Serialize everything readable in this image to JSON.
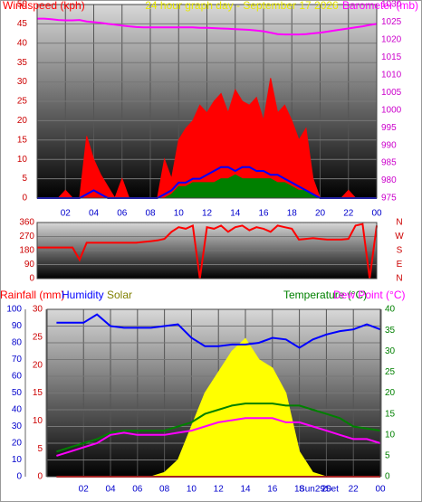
{
  "chart_data": [
    {
      "type": "line",
      "title": "24 hour graph day - September 17 2026",
      "x": [
        0,
        0.5,
        1,
        1.5,
        2,
        2.5,
        3,
        3.5,
        4,
        4.5,
        5,
        5.5,
        6,
        6.5,
        7,
        7.5,
        8,
        8.5,
        9,
        9.5,
        10,
        10.5,
        11,
        11.5,
        12,
        12.5,
        13,
        13.5,
        14,
        14.5,
        15,
        15.5,
        16,
        16.5,
        17,
        17.5,
        18,
        18.5,
        19,
        19.5,
        20,
        20.5,
        21,
        21.5,
        22,
        22.5,
        23,
        23.5,
        24
      ],
      "xlim": [
        0,
        24
      ],
      "xticks": [
        {
          "value": 2,
          "label": "02"
        },
        {
          "value": 4,
          "label": "04"
        },
        {
          "value": 6,
          "label": "06"
        },
        {
          "value": 8,
          "label": "08"
        },
        10,
        12,
        14,
        16,
        18,
        20,
        22,
        {
          "value": 24,
          "label": "00"
        }
      ],
      "ylim": [
        0,
        50
      ],
      "yticks": [
        0,
        5,
        10,
        15,
        20,
        25,
        30,
        35,
        40,
        45,
        50
      ],
      "y2lim": [
        975,
        1030
      ],
      "y2ticks": [
        975,
        980,
        985,
        990,
        995,
        1000,
        1005,
        1010,
        1015,
        1020,
        1025,
        1030
      ],
      "series": [
        {
          "name": "Windspeed (kph)",
          "color": "#ff0000",
          "style": "area",
          "axis": "y",
          "values": [
            0,
            0,
            0,
            0,
            2,
            0,
            0,
            16,
            10,
            6,
            3,
            0,
            5,
            0,
            0,
            0,
            0,
            0,
            10,
            5,
            15,
            18,
            20,
            24,
            22,
            25,
            27,
            22,
            28,
            25,
            24,
            26,
            20,
            31,
            22,
            24,
            20,
            15,
            18,
            5,
            0,
            0,
            0,
            0,
            2,
            0,
            0,
            0,
            0
          ]
        },
        {
          "color": "#0000ff",
          "style": "line",
          "axis": "y",
          "values": [
            0,
            0,
            0,
            0,
            0,
            0,
            0,
            1,
            2,
            1,
            0,
            0,
            0,
            0,
            0,
            0,
            0,
            0,
            1,
            2,
            4,
            4,
            5,
            5,
            6,
            7,
            8,
            8,
            7,
            8,
            8,
            7,
            7,
            6,
            6,
            5,
            4,
            3,
            2,
            1,
            0,
            0,
            0,
            0,
            0,
            0,
            0,
            0,
            0
          ]
        },
        {
          "color": "#008000",
          "style": "area",
          "axis": "y",
          "values": [
            0,
            0,
            0,
            0,
            0,
            0,
            0,
            0,
            0,
            0,
            0,
            0,
            0,
            0,
            0,
            0,
            0,
            0,
            0,
            1,
            3,
            3,
            4,
            4,
            4,
            4,
            5,
            5,
            6,
            5,
            5,
            5,
            5,
            5,
            4,
            4,
            3,
            2,
            2,
            1,
            0,
            0,
            0,
            0,
            0,
            0,
            0,
            0,
            0
          ]
        },
        {
          "name": "Barometer (mb)",
          "color": "#ff00ff",
          "style": "line",
          "axis": "y2",
          "values": [
            1026,
            1026,
            1025.8,
            1025.6,
            1025.5,
            1025.5,
            1025.6,
            1025.2,
            1025,
            1024.8,
            1024.5,
            1024.3,
            1024,
            1023.8,
            1023.6,
            1023.5,
            1023.5,
            1023.5,
            1023.5,
            1023.5,
            1023.5,
            1023.5,
            1023.5,
            1023.4,
            1023.4,
            1023.3,
            1023.2,
            1023.1,
            1023,
            1022.9,
            1022.8,
            1022.6,
            1022.4,
            1022,
            1021.6,
            1021.5,
            1021.5,
            1021.5,
            1021.6,
            1021.8,
            1022,
            1022.3,
            1022.6,
            1022.9,
            1023.2,
            1023.5,
            1023.8,
            1024.2,
            1024.5
          ]
        }
      ]
    },
    {
      "type": "line",
      "x": [
        0,
        0.5,
        1,
        1.5,
        2,
        2.5,
        3,
        3.5,
        4,
        4.5,
        5,
        5.5,
        6,
        6.5,
        7,
        7.5,
        8,
        8.5,
        9,
        9.5,
        10,
        10.5,
        11,
        11.5,
        12,
        12.5,
        13,
        13.5,
        14,
        14.5,
        15,
        15.5,
        16,
        16.5,
        17,
        17.5,
        18,
        18.5,
        19,
        19.5,
        20,
        20.5,
        21,
        21.5,
        22,
        22.5,
        23,
        23.5,
        24
      ],
      "xlim": [
        0,
        24
      ],
      "ylim": [
        0,
        360
      ],
      "yticks": [
        0,
        90,
        180,
        270,
        360
      ],
      "y2lim": [
        0,
        360
      ],
      "y2ticks": [
        {
          "value": 0,
          "label": "N"
        },
        {
          "value": 90,
          "label": "E"
        },
        {
          "value": 180,
          "label": "S"
        },
        {
          "value": 270,
          "label": "W"
        },
        {
          "value": 360,
          "label": "N"
        }
      ],
      "series": [
        {
          "color": "#ff0000",
          "style": "line",
          "axis": "y",
          "values": [
            200,
            200,
            200,
            200,
            200,
            200,
            120,
            230,
            230,
            230,
            230,
            230,
            230,
            230,
            230,
            235,
            240,
            245,
            255,
            300,
            330,
            320,
            340,
            0,
            330,
            320,
            340,
            300,
            330,
            340,
            310,
            330,
            320,
            300,
            340,
            330,
            320,
            250,
            255,
            260,
            255,
            250,
            250,
            250,
            255,
            340,
            350,
            0,
            340
          ]
        }
      ]
    },
    {
      "type": "line",
      "annotation": "Sun29Set",
      "x": [
        0,
        1,
        2,
        3,
        4,
        5,
        6,
        7,
        8,
        9,
        10,
        11,
        12,
        13,
        14,
        15,
        16,
        17,
        18,
        19,
        20,
        21,
        22,
        23,
        24
      ],
      "xlim": [
        -0.7,
        24
      ],
      "xticks": [
        {
          "value": 2,
          "label": "02"
        },
        {
          "value": 4,
          "label": "04"
        },
        {
          "value": 6,
          "label": "06"
        },
        {
          "value": 8,
          "label": "08"
        },
        10,
        12,
        14,
        16,
        18,
        20,
        22,
        {
          "value": 24,
          "label": "00"
        }
      ],
      "ylim": [
        0,
        100
      ],
      "yticks": [
        0,
        10,
        20,
        30,
        40,
        50,
        60,
        70,
        80,
        90,
        100
      ],
      "y3lim": [
        0,
        30
      ],
      "y3ticks": [
        0,
        5,
        10,
        15,
        20,
        25,
        30
      ],
      "y2lim": [
        0,
        40
      ],
      "y2ticks": [
        0,
        5,
        10,
        15,
        20,
        25,
        30,
        35,
        40
      ],
      "series": [
        {
          "name": "Rainfall (mm)",
          "color": "#ff0000",
          "style": "line",
          "axis": "y3",
          "values": [
            0,
            0,
            0,
            0,
            0,
            0,
            0,
            0,
            0,
            0,
            0,
            0,
            0,
            0,
            0,
            0,
            0,
            0,
            0,
            0,
            0,
            0,
            0,
            0,
            0
          ]
        },
        {
          "name": "Humidity",
          "color": "#0000ff",
          "style": "line",
          "axis": "y",
          "values": [
            92,
            92,
            92,
            97,
            90,
            89,
            89,
            89,
            90,
            91,
            83,
            78,
            78,
            79,
            79,
            80,
            83,
            82,
            77,
            82,
            85,
            87,
            88,
            91,
            88
          ]
        },
        {
          "name": "Solar",
          "color": "#ffff00",
          "style": "area",
          "axis": "y2",
          "values": [
            0,
            0,
            0,
            0,
            0,
            0,
            0,
            0,
            1,
            4,
            12,
            20,
            25,
            30,
            33,
            28,
            26,
            20,
            6,
            1,
            0,
            0,
            0,
            0,
            0
          ]
        },
        {
          "name": "Temperature (°C)",
          "color": "#008000",
          "style": "line",
          "axis": "y2",
          "values": [
            6,
            7,
            8,
            9,
            10.5,
            11,
            11,
            11,
            11,
            12,
            13,
            15,
            16,
            17,
            17.5,
            17.5,
            17.5,
            17,
            17,
            16,
            15,
            14,
            12,
            11.5,
            11
          ]
        },
        {
          "name": "Dew Point (°C)",
          "color": "#ff00ff",
          "style": "line",
          "axis": "y2",
          "values": [
            5,
            6,
            7,
            8,
            10,
            10.5,
            10,
            10,
            10,
            10.5,
            11,
            12,
            13,
            13.5,
            14,
            14,
            14,
            13,
            13,
            12,
            11,
            10,
            9,
            9,
            8
          ]
        }
      ]
    }
  ]
}
